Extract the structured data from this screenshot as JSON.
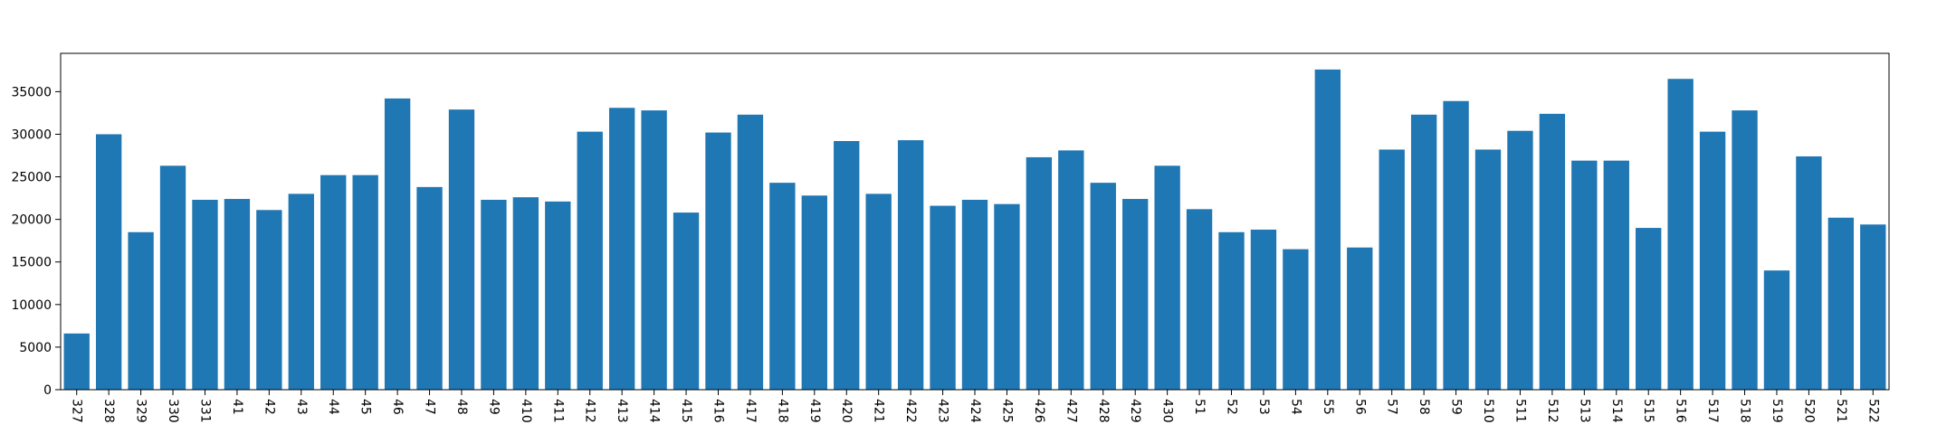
{
  "chart_data": {
    "type": "bar",
    "title": "",
    "xlabel": "",
    "ylabel": "",
    "ylim": [
      0,
      39500
    ],
    "yticks": [
      0,
      5000,
      10000,
      15000,
      20000,
      25000,
      30000,
      35000
    ],
    "grid": false,
    "bar_color": "#1f77b4",
    "categories": [
      "327",
      "328",
      "329",
      "330",
      "331",
      "41",
      "42",
      "43",
      "44",
      "45",
      "46",
      "47",
      "48",
      "49",
      "410",
      "411",
      "412",
      "413",
      "414",
      "415",
      "416",
      "417",
      "418",
      "419",
      "420",
      "421",
      "422",
      "423",
      "424",
      "425",
      "426",
      "427",
      "428",
      "429",
      "430",
      "51",
      "52",
      "53",
      "54",
      "55",
      "56",
      "57",
      "58",
      "59",
      "510",
      "511",
      "512",
      "513",
      "514",
      "515",
      "516",
      "517",
      "518",
      "519",
      "520",
      "521",
      "522"
    ],
    "values": [
      6600,
      30000,
      18500,
      26300,
      22300,
      22400,
      21100,
      23000,
      25200,
      25200,
      34200,
      23800,
      32900,
      22300,
      22600,
      22100,
      30300,
      33100,
      32800,
      20800,
      30200,
      32300,
      24300,
      22800,
      29200,
      23000,
      29300,
      21600,
      22300,
      21800,
      27300,
      28100,
      24300,
      22400,
      26300,
      21200,
      18500,
      18800,
      16500,
      37600,
      16700,
      28200,
      32300,
      33900,
      28200,
      30400,
      32400,
      26900,
      26900,
      19000,
      36500,
      30300,
      32800,
      14000,
      27400,
      20200,
      19400
    ]
  }
}
